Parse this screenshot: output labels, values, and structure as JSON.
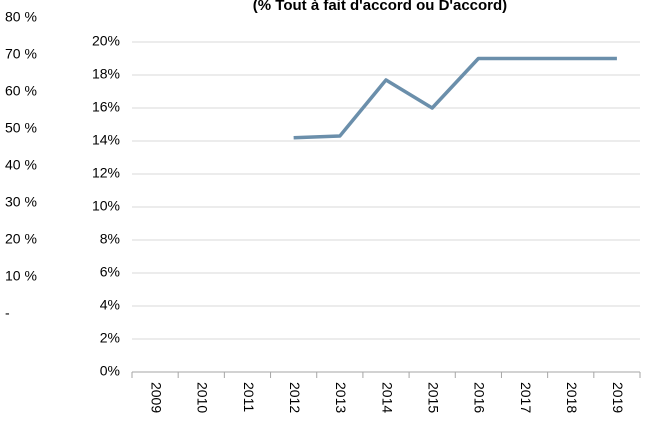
{
  "chart_data": {
    "type": "line",
    "title": "(% Tout à fait d'accord ou D'accord)",
    "categories": [
      "2009",
      "2010",
      "2011",
      "2012",
      "2013",
      "2014",
      "2015",
      "2016",
      "2017",
      "2018",
      "2019"
    ],
    "series": [
      {
        "name": "Série",
        "color": "#6b8fab",
        "values": [
          null,
          null,
          null,
          14.2,
          14.3,
          17.7,
          16.0,
          19.0,
          19.0,
          19.0,
          19.0
        ]
      }
    ],
    "ylim": [
      0,
      20
    ],
    "yticks": [
      {
        "value": 0,
        "label": "0%"
      },
      {
        "value": 2,
        "label": "2%"
      },
      {
        "value": 4,
        "label": "4%"
      },
      {
        "value": 6,
        "label": "6%"
      },
      {
        "value": 8,
        "label": "8%"
      },
      {
        "value": 10,
        "label": "10%"
      },
      {
        "value": 12,
        "label": "12%"
      },
      {
        "value": 14,
        "label": "14%"
      },
      {
        "value": 16,
        "label": "16%"
      },
      {
        "value": 18,
        "label": "18%"
      },
      {
        "value": 20,
        "label": "20%"
      }
    ],
    "y2lim": [
      0,
      80
    ],
    "y2ticks": [
      {
        "value": 0,
        "label": "-"
      },
      {
        "value": 10,
        "label": "10 %"
      },
      {
        "value": 20,
        "label": "20 %"
      },
      {
        "value": 30,
        "label": "30 %"
      },
      {
        "value": 40,
        "label": "40 %"
      },
      {
        "value": 50,
        "label": "50 %"
      },
      {
        "value": 60,
        "label": "60 %"
      },
      {
        "value": 70,
        "label": "70 %"
      },
      {
        "value": 80,
        "label": "80 %"
      }
    ],
    "grid": true
  }
}
